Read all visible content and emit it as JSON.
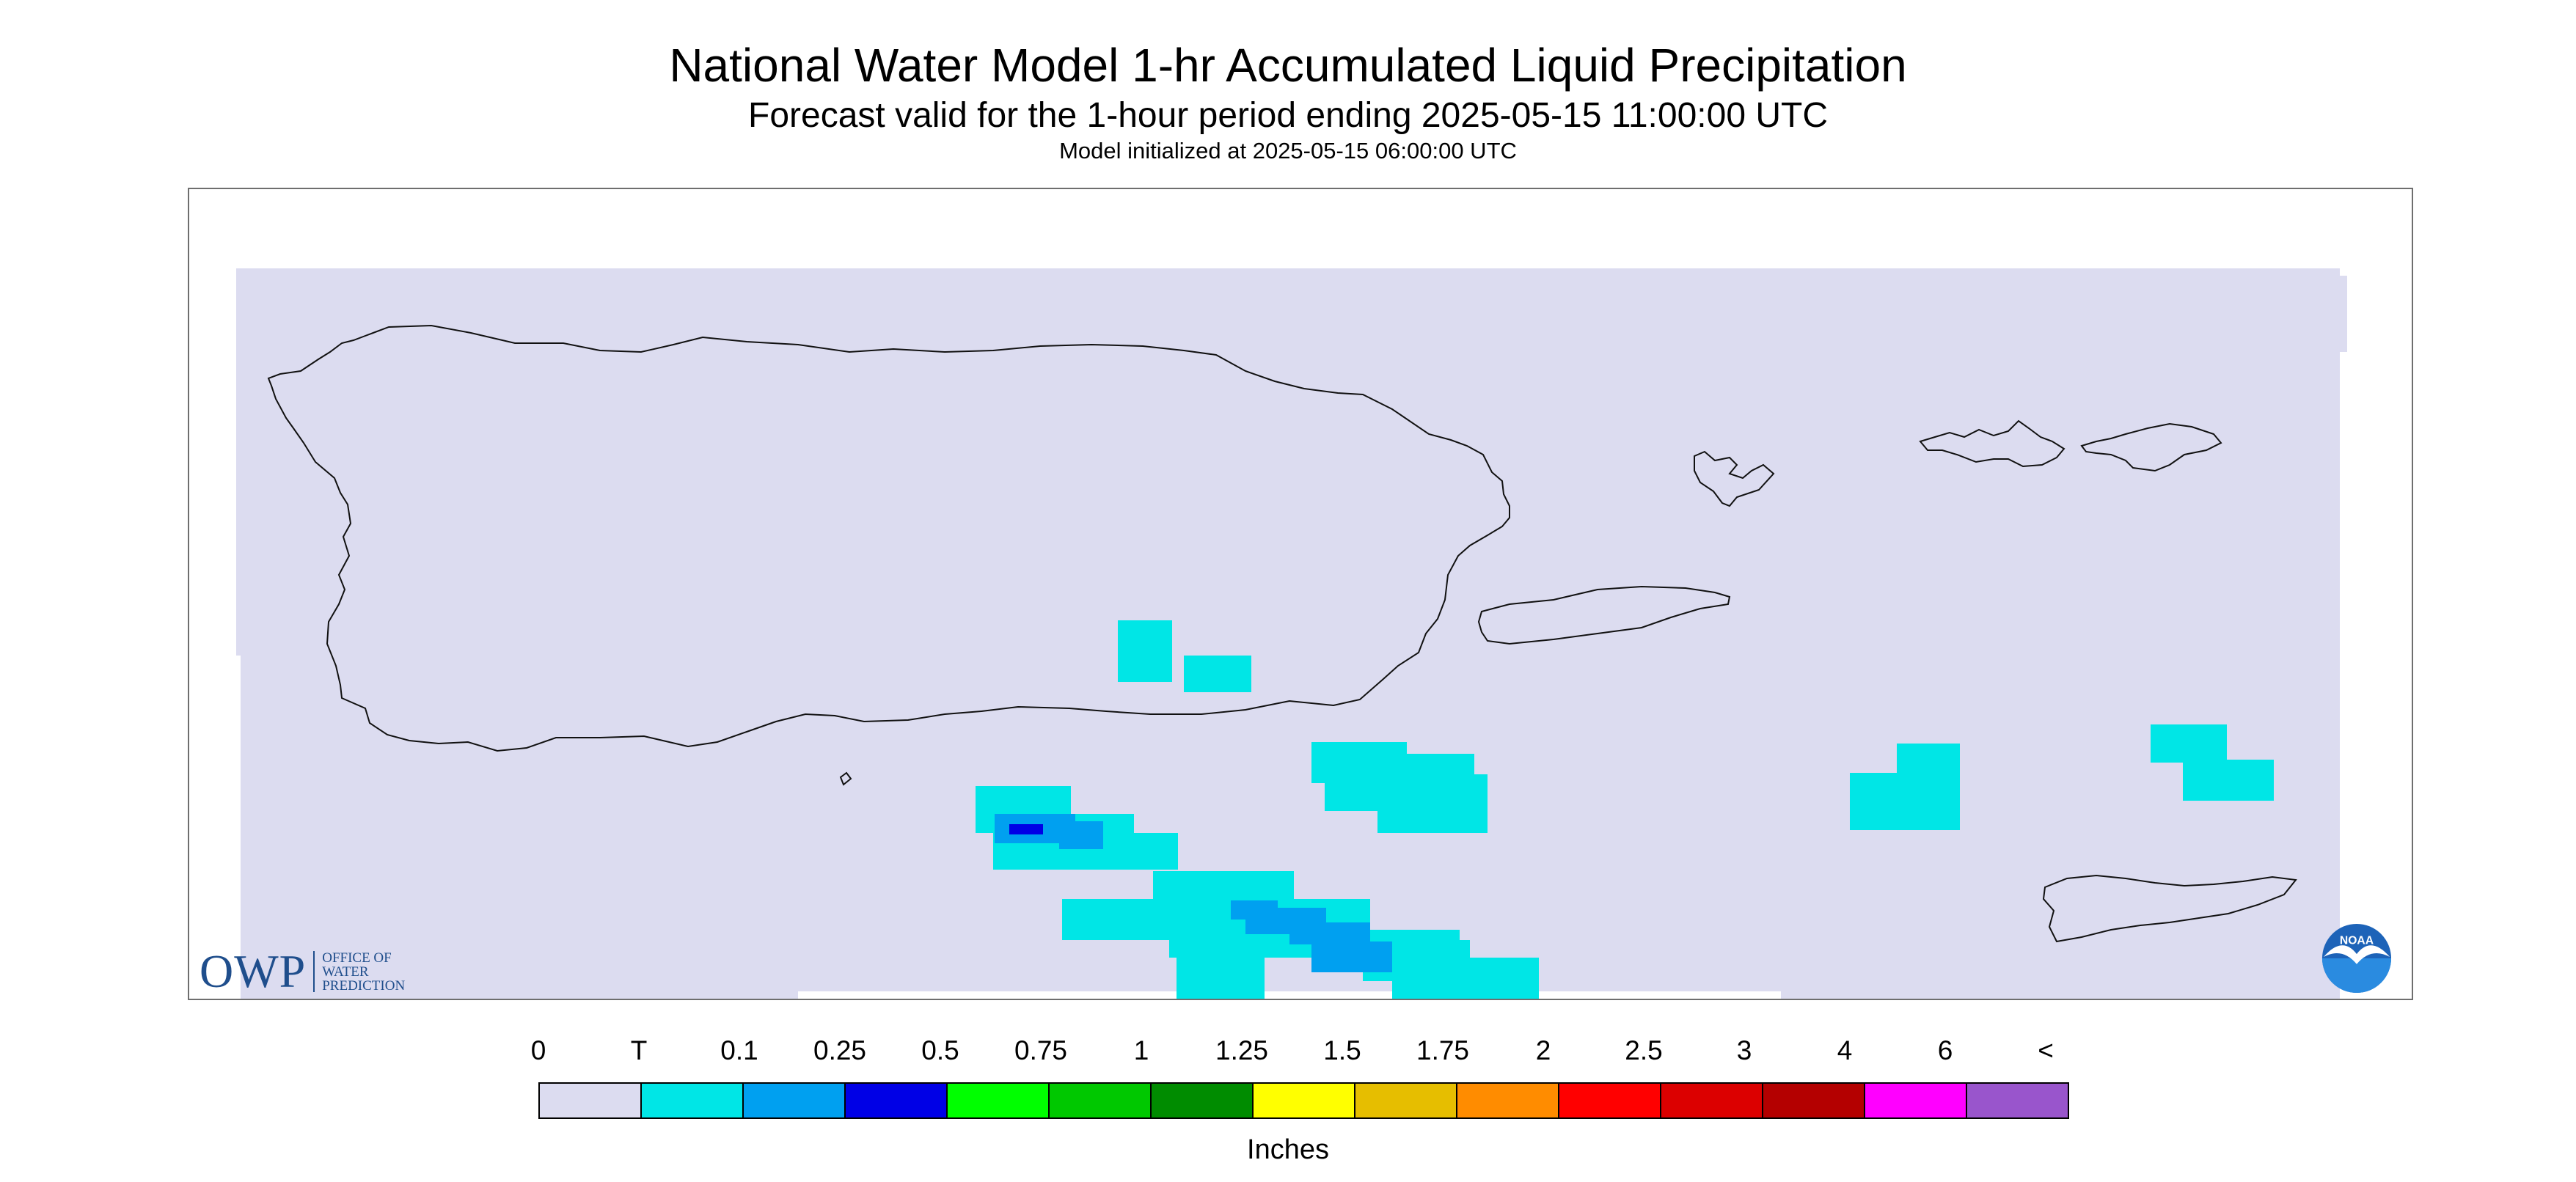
{
  "header": {
    "title": "National Water Model 1-hr Accumulated Liquid Precipitation",
    "subtitle": "Forecast valid for the 1-hour period ending 2025-05-15 11:00:00 UTC",
    "init_line": "Model initialized at 2025-05-15 06:00:00 UTC"
  },
  "map": {
    "background_color": "#dcdcf0",
    "precip_colors": {
      "trace": "#00e6e6",
      "light": "#00a0f0",
      "moderate": "#0000e6"
    }
  },
  "logos": {
    "owp": {
      "mark": "OWP",
      "line1": "OFFICE OF",
      "line2": "WATER",
      "line3": "PREDICTION",
      "color": "#1f4e8c"
    },
    "noaa": {
      "text": "NOAA",
      "icon": "noaa-seagull-icon"
    }
  },
  "legend": {
    "labels": [
      "0",
      "T",
      "0.1",
      "0.25",
      "0.5",
      "0.75",
      "1",
      "1.25",
      "1.5",
      "1.75",
      "2",
      "2.5",
      "3",
      "4",
      "6",
      "<"
    ],
    "colors": [
      "#dcdcf0",
      "#00e6e6",
      "#00a0f0",
      "#0000e6",
      "#00ff00",
      "#00c800",
      "#008c00",
      "#ffff00",
      "#e6be00",
      "#ff8c00",
      "#ff0000",
      "#dc0000",
      "#b40000",
      "#ff00ff",
      "#9955cc"
    ],
    "units": "Inches"
  }
}
